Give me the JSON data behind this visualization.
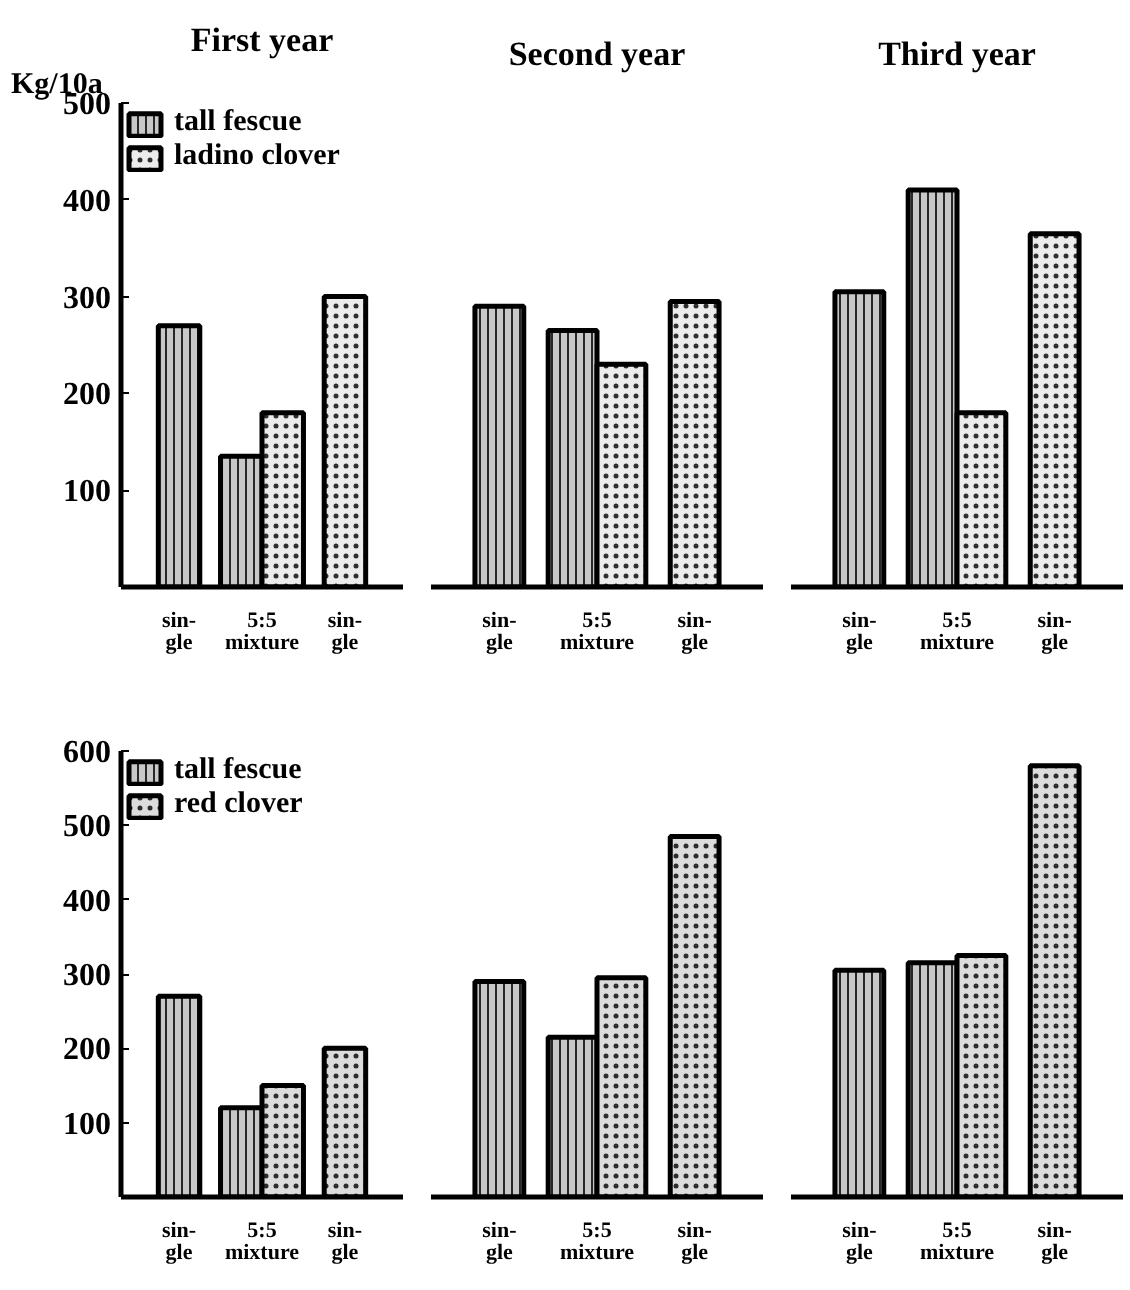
{
  "chart_data": [
    {
      "type": "bar",
      "title": "First year",
      "ylabel": "Kg/10a",
      "categories": [
        "sin-\ngle",
        "5:5\nmixture",
        "sin-\ngle"
      ],
      "series": [
        {
          "name": "tall fescue",
          "color": "#c8c8c8",
          "values": [
            270,
            135,
            null
          ]
        },
        {
          "name": "ladino clover",
          "color": "#ececec",
          "values": [
            null,
            180,
            300
          ]
        }
      ],
      "ylim": [
        0,
        500
      ],
      "yticks": [
        100,
        200,
        300,
        400,
        500
      ],
      "legend": "top left",
      "grid": false
    },
    {
      "type": "bar",
      "title": "Second year",
      "categories": [
        "sin-\ngle",
        "5:5\nmixture",
        "sin-\ngle"
      ],
      "series": [
        {
          "color": "#c8c8c8",
          "values": [
            290,
            265,
            null
          ]
        },
        {
          "color": "#ececec",
          "values": [
            null,
            230,
            295
          ]
        }
      ],
      "ylim": [
        0,
        500
      ],
      "tick_labels": "x",
      "grid": false
    },
    {
      "type": "bar",
      "title": "Third year",
      "categories": [
        "sin-\ngle",
        "5:5\nmixture",
        "sin-\ngle"
      ],
      "series": [
        {
          "color": "#c8c8c8",
          "values": [
            305,
            410,
            null
          ]
        },
        {
          "color": "#ececec",
          "values": [
            null,
            180,
            365
          ]
        }
      ],
      "ylim": [
        0,
        500
      ],
      "tick_labels": "x",
      "grid": false
    },
    {
      "type": "bar",
      "categories": [
        "sin-\ngle",
        "5:5\nmixture",
        "sin-\ngle"
      ],
      "series": [
        {
          "name": "tall fescue",
          "color": "#c8c8c8",
          "values": [
            270,
            120,
            null
          ]
        },
        {
          "name": "red clover",
          "color": "#dcdcdc",
          "values": [
            null,
            150,
            200
          ]
        }
      ],
      "ylim": [
        0,
        600
      ],
      "yticks": [
        100,
        200,
        300,
        400,
        500,
        600
      ],
      "legend": "top left",
      "grid": false
    },
    {
      "type": "bar",
      "categories": [
        "sin-\ngle",
        "5:5\nmixture",
        "sin-\ngle"
      ],
      "series": [
        {
          "color": "#c8c8c8",
          "values": [
            290,
            215,
            null
          ]
        },
        {
          "color": "#dcdcdc",
          "values": [
            null,
            295,
            485
          ]
        }
      ],
      "ylim": [
        0,
        600
      ],
      "tick_labels": "x",
      "grid": false
    },
    {
      "type": "bar",
      "categories": [
        "sin-\ngle",
        "5:5\nmixture",
        "sin-\ngle"
      ],
      "series": [
        {
          "color": "#c8c8c8",
          "values": [
            305,
            315,
            null
          ]
        },
        {
          "color": "#dcdcdc",
          "values": [
            null,
            325,
            580
          ]
        }
      ],
      "ylim": [
        0,
        600
      ],
      "tick_labels": "x",
      "grid": false
    }
  ]
}
